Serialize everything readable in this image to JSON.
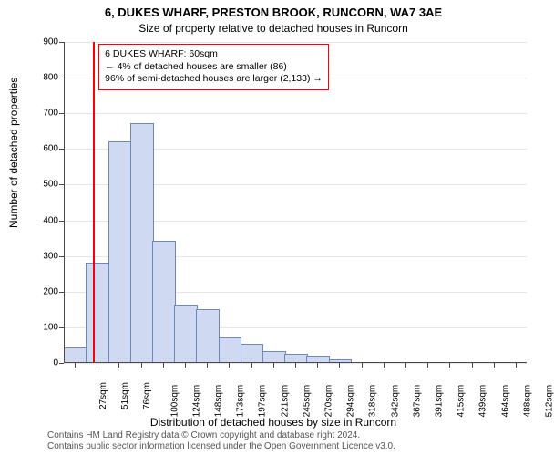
{
  "title": "6, DUKES WHARF, PRESTON BROOK, RUNCORN, WA7 3AE",
  "subtitle": "Size of property relative to detached houses in Runcorn",
  "ylabel": "Number of detached properties",
  "xlabel": "Distribution of detached houses by size in Runcorn",
  "credits_l1": "Contains HM Land Registry data © Crown copyright and database right 2024.",
  "credits_l2": "Contains public sector information licensed under the Open Government Licence v3.0.",
  "chart": {
    "type": "histogram",
    "ylim": [
      0,
      900
    ],
    "ytick_step": 100,
    "background_color": "#ffffff",
    "grid_color": "#e6e6e6",
    "bar_fill": "#cfdaf2",
    "bar_stroke": "#6f87bf",
    "bar_width": 0.98,
    "marker_color": "#ff0000",
    "annotation_border": "#ff0000",
    "title_fontsize": 13,
    "subtitle_fontsize": 12,
    "label_fontsize": 12,
    "tick_fontsize": 10,
    "annot_fontsize": 10.5,
    "x_labels": [
      "27sqm",
      "51sqm",
      "76sqm",
      "100sqm",
      "124sqm",
      "148sqm",
      "173sqm",
      "197sqm",
      "221sqm",
      "245sqm",
      "270sqm",
      "294sqm",
      "318sqm",
      "342sqm",
      "367sqm",
      "391sqm",
      "415sqm",
      "439sqm",
      "464sqm",
      "488sqm",
      "512sqm"
    ],
    "values": [
      42,
      278,
      620,
      670,
      340,
      160,
      148,
      68,
      50,
      30,
      22,
      18,
      8,
      0,
      0,
      0,
      0,
      0,
      0,
      0,
      0
    ],
    "marker_bin_index": 1,
    "marker_frac_within_bin": 0.33
  },
  "annotation": {
    "l1": "6 DUKES WHARF: 60sqm",
    "l2": "← 4% of detached houses are smaller (86)",
    "l3": "96% of semi-detached houses are larger (2,133) →"
  }
}
